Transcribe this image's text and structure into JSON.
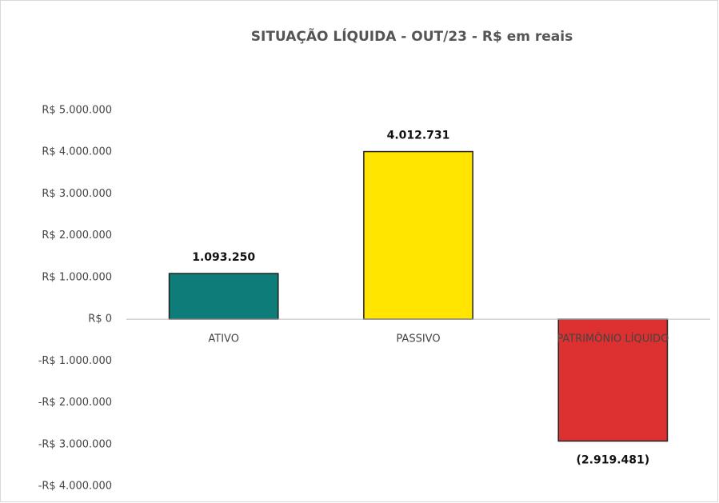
{
  "chart_data": {
    "type": "bar",
    "title": "SITUAÇÃO LÍQUIDA -  OUT/23 - R$ em reais",
    "categories": [
      "ATIVO",
      "PASSIVO",
      "PATRIMÔNIO LÍQUIDO"
    ],
    "values": [
      1093250,
      4012731,
      -2919481
    ],
    "value_labels": [
      "1.093.250",
      "4.012.731",
      "(2.919.481)"
    ],
    "colors": [
      "#0e7c78",
      "#ffe500",
      "#dd3030"
    ],
    "ylim": [
      -4000000,
      5000000
    ],
    "yticks": [
      {
        "value": -4000000,
        "label": "-R$ 4.000.000"
      },
      {
        "value": -3000000,
        "label": "-R$ 3.000.000"
      },
      {
        "value": -2000000,
        "label": "-R$ 2.000.000"
      },
      {
        "value": -1000000,
        "label": "-R$ 1.000.000"
      },
      {
        "value": 0,
        "label": "R$ 0"
      },
      {
        "value": 1000000,
        "label": "R$ 1.000.000"
      },
      {
        "value": 2000000,
        "label": "R$ 2.000.000"
      },
      {
        "value": 3000000,
        "label": "R$ 3.000.000"
      },
      {
        "value": 4000000,
        "label": "R$ 4.000.000"
      },
      {
        "value": 5000000,
        "label": "R$ 5.000.000"
      }
    ],
    "grid": false
  }
}
